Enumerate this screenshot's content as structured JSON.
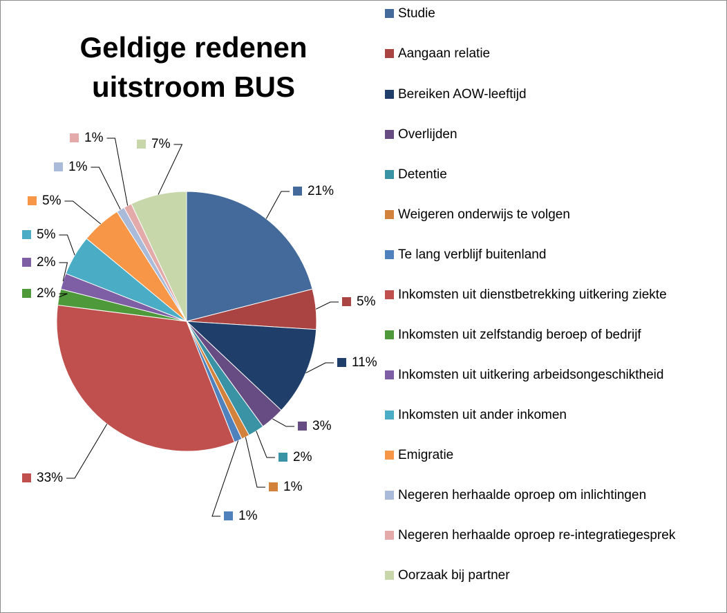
{
  "chart_data": {
    "type": "pie",
    "title": "Geldige redenen uitstroom BUS",
    "categories": [
      "Studie",
      "Aangaan relatie",
      "Bereiken AOW-leeftijd",
      "Overlijden",
      "Detentie",
      "Weigeren onderwijs te volgen",
      "Te lang verblijf buitenland",
      "Inkomsten uit dienstbetrekking uitkering ziekte",
      "Inkomsten uit zelfstandig beroep of bedrijf",
      "Inkomsten uit uitkering arbeidsongeschiktheid",
      "Inkomsten uit ander inkomen",
      "Emigratie",
      "Negeren herhaalde oproep om inlichtingen",
      "Negeren herhaalde oproep re-integratiegesprek",
      "Oorzaak bij partner"
    ],
    "values": [
      21,
      5,
      11,
      3,
      2,
      1,
      1,
      33,
      2,
      2,
      5,
      5,
      1,
      1,
      7
    ],
    "value_labels": [
      "21%",
      "5%",
      "11%",
      "3%",
      "2%",
      "1%",
      "1%",
      "33%",
      "2%",
      "2%",
      "5%",
      "5%",
      "1%",
      "1%",
      "7%"
    ],
    "colors": [
      "#44699b",
      "#a94442",
      "#1f3e69",
      "#674c84",
      "#3a92a5",
      "#d3823c",
      "#4f81bd",
      "#c0504d",
      "#4e9a3a",
      "#7e5fa6",
      "#4bacc6",
      "#f79646",
      "#aabbda",
      "#e3aaa9",
      "#c7d7aa"
    ],
    "legend": "right"
  }
}
